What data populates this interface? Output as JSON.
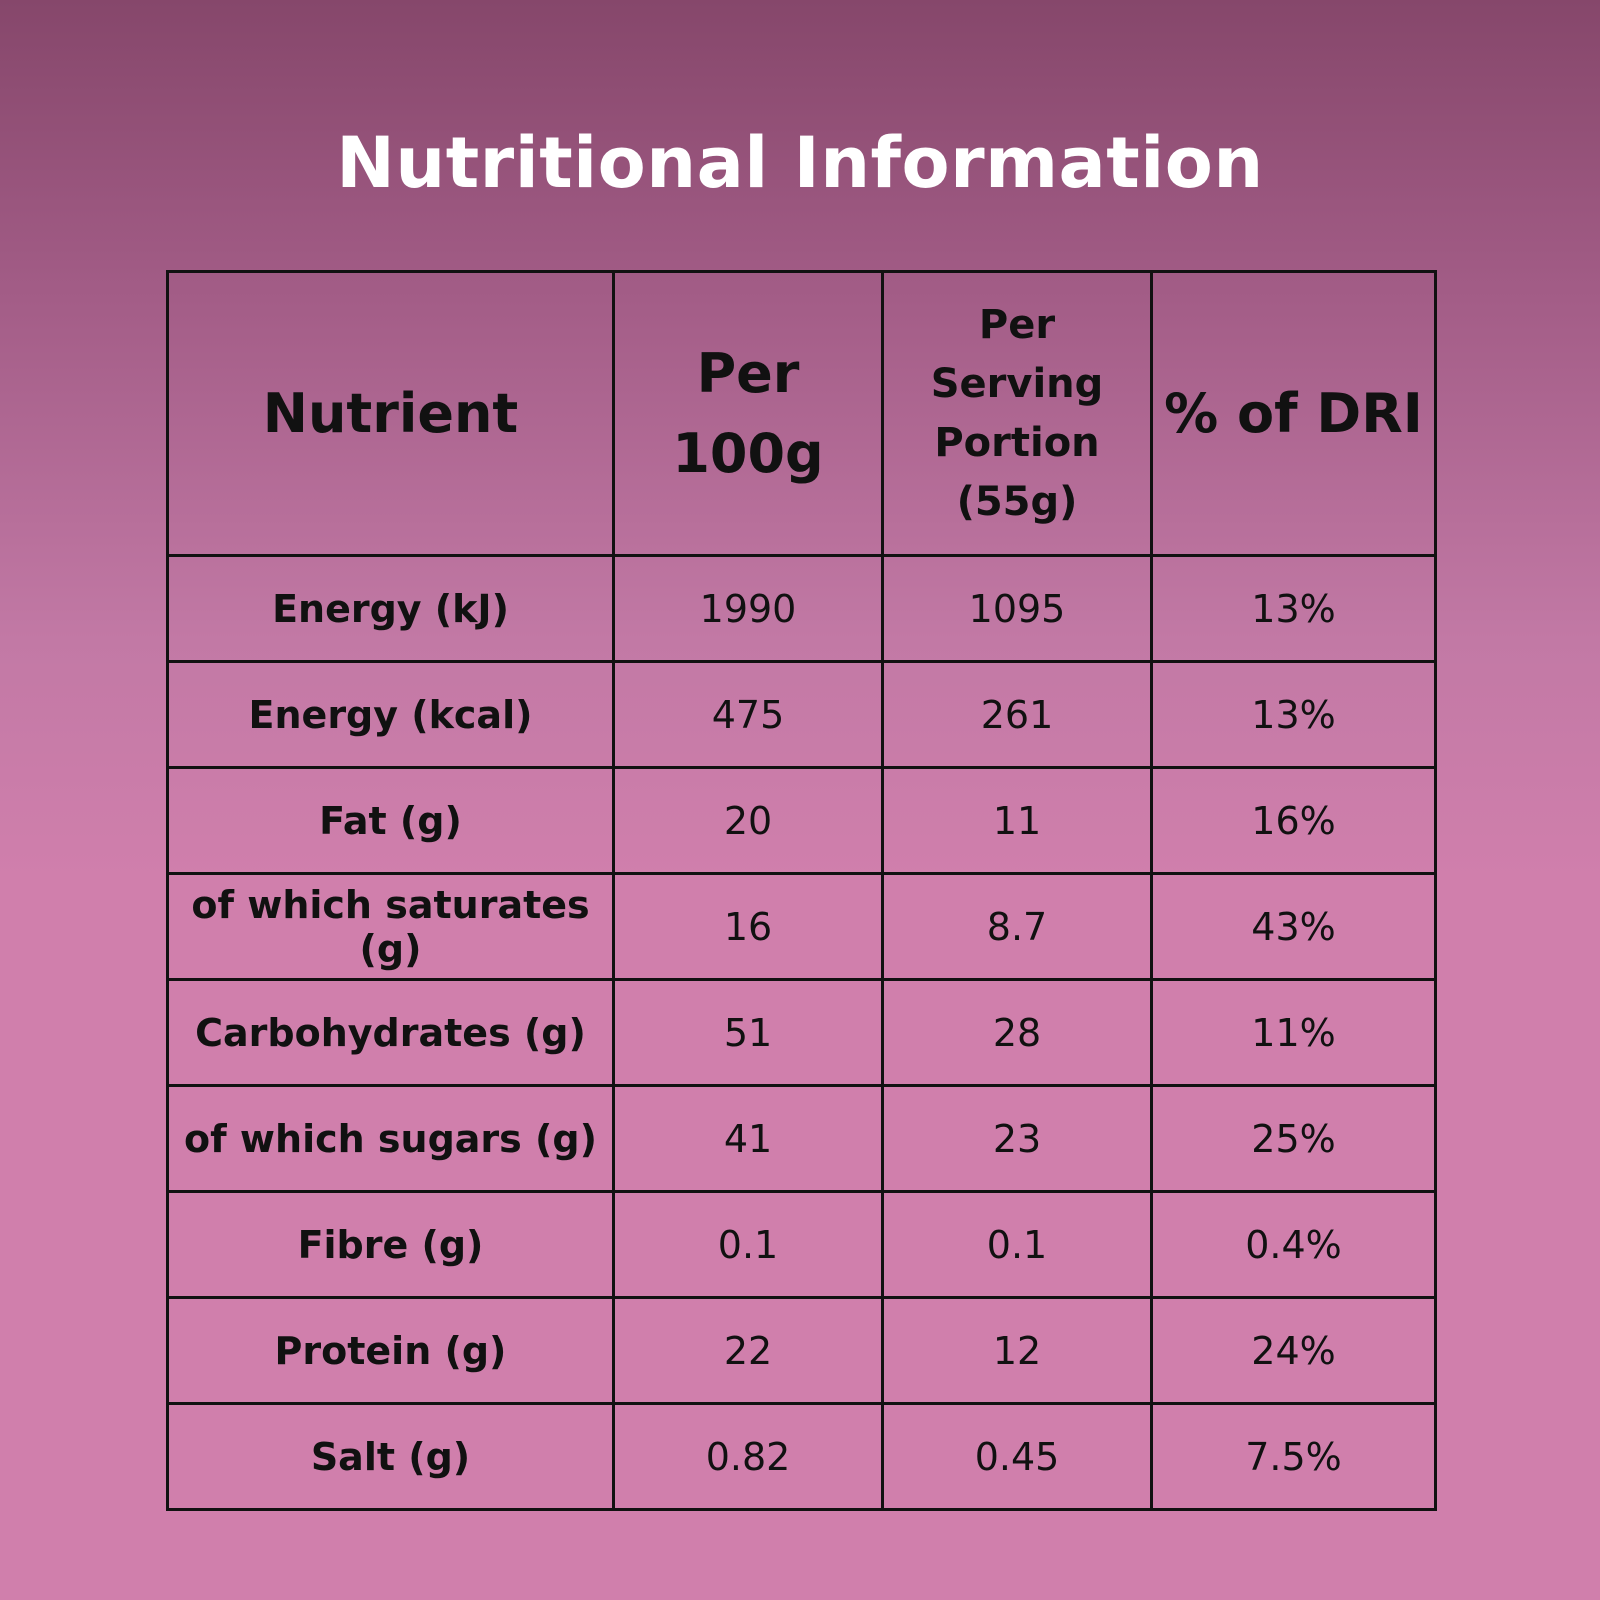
{
  "title": "Nutritional Information",
  "table": {
    "headers": {
      "nutrient": "Nutrient",
      "per_100g": [
        "Per",
        "100g"
      ],
      "per_serving": [
        "Per",
        "Serving",
        "Portion",
        "(55g)"
      ],
      "dri": "% of DRI"
    },
    "rows": [
      {
        "name": "Energy (kJ)",
        "per_100g": "1990",
        "per_serving": "1095",
        "dri": "13%"
      },
      {
        "name": "Energy (kcal)",
        "per_100g": "475",
        "per_serving": "261",
        "dri": "13%"
      },
      {
        "name": "Fat (g)",
        "per_100g": "20",
        "per_serving": "11",
        "dri": "16%"
      },
      {
        "name": "of which saturates (g)",
        "per_100g": "16",
        "per_serving": "8.7",
        "dri": "43%"
      },
      {
        "name": "Carbohydrates (g)",
        "per_100g": "51",
        "per_serving": "28",
        "dri": "11%"
      },
      {
        "name": "of which sugars (g)",
        "per_100g": "41",
        "per_serving": "23",
        "dri": "25%"
      },
      {
        "name": "Fibre (g)",
        "per_100g": "0.1",
        "per_serving": "0.1",
        "dri": "0.4%"
      },
      {
        "name": "Protein (g)",
        "per_100g": "22",
        "per_serving": "12",
        "dri": "24%"
      },
      {
        "name": "Salt (g)",
        "per_100g": "0.82",
        "per_serving": "0.45",
        "dri": "7.5%"
      }
    ]
  },
  "colors": {
    "background_top": "#86476b",
    "background_bottom": "#d07fac",
    "title": "#ffffff",
    "text": "#111111",
    "border": "#111111"
  }
}
